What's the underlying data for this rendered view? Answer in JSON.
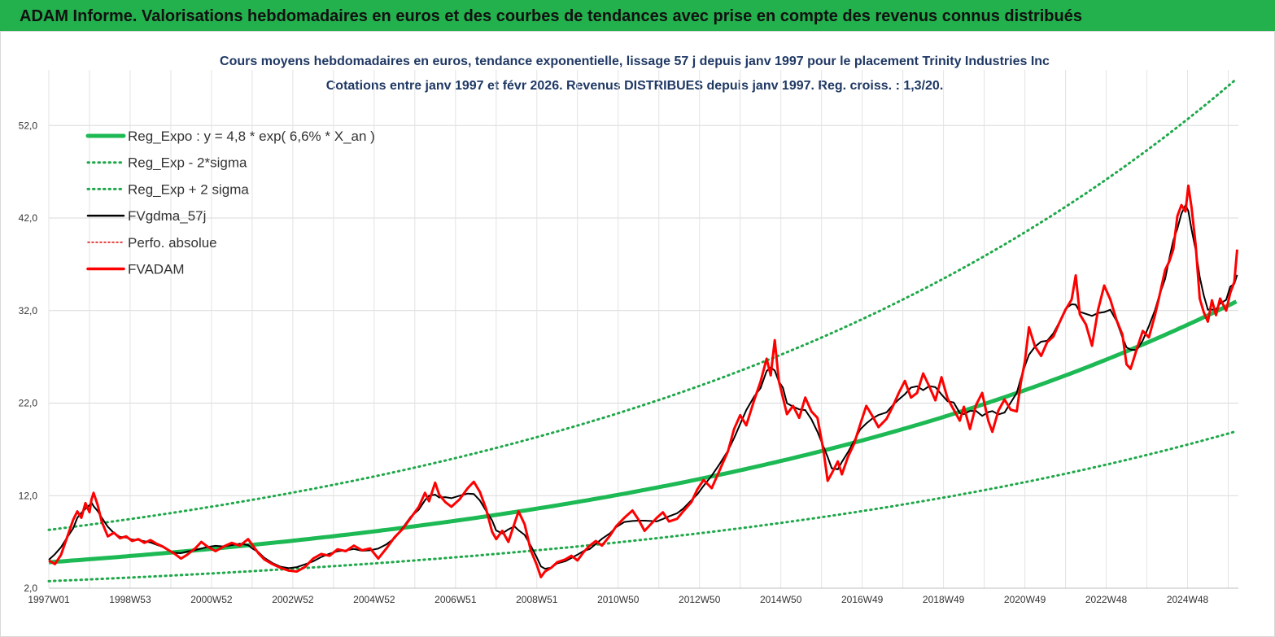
{
  "header": {
    "title": "ADAM Informe. Valorisations hebdomadaires en euros et des courbes de tendances avec prise en compte des revenus connus distribués"
  },
  "colors": {
    "header_bg": "#22b14c",
    "trend": "#1db954",
    "band": "#1fa84a",
    "gdma": "#000000",
    "fvadam": "#ff0000",
    "perfo": "#e00000"
  },
  "chart_data": {
    "type": "line",
    "title": "Cours moyens hebdomadaires en euros, tendance exponentielle, lissage 57 j depuis janv 1997 pour le placement Trinity Industries Inc",
    "subtitle": "Cotations entre janv 1997 et févr 2026. Revenus DISTRIBUES depuis janv 1997. Reg. croiss. : 1,3/20.",
    "xlabel": "",
    "ylabel": "",
    "ylim": [
      2,
      58
    ],
    "y_ticks": [
      "2,0",
      "12,0",
      "22,0",
      "32,0",
      "42,0",
      "52,0"
    ],
    "y_tick_values": [
      2,
      12,
      22,
      32,
      42,
      52
    ],
    "x_ticks": [
      "1997W01",
      "1998W53",
      "2000W52",
      "2002W52",
      "2004W52",
      "2006W51",
      "2008W51",
      "2010W50",
      "2012W50",
      "2014W50",
      "2016W49",
      "2018W49",
      "2020W49",
      "2022W48",
      "2024W48"
    ],
    "x_tick_years": [
      1997.0,
      1999.0,
      2001.0,
      2003.0,
      2005.0,
      2007.0,
      2009.0,
      2011.0,
      2013.0,
      2015.0,
      2017.0,
      2019.0,
      2021.0,
      2023.0,
      2025.0
    ],
    "xlim_years": [
      1997.0,
      2026.25
    ],
    "grid": true,
    "legend_position": "top-left",
    "series": [
      {
        "name": "Reg_Expo : y = 4,8 * exp( 6,6% *  X_an )",
        "style": "thick-solid",
        "color": "#1db954",
        "formula": {
          "a": 4.8,
          "rate": 0.066
        }
      },
      {
        "name": "Reg_Exp - 2*sigma",
        "style": "dotted",
        "color": "#1fa84a",
        "formula": {
          "a": 2.76,
          "rate": 0.066
        }
      },
      {
        "name": "Reg_Exp + 2 sigma",
        "style": "dotted",
        "color": "#1fa84a",
        "formula": {
          "a": 8.3,
          "rate": 0.066
        }
      },
      {
        "name": "FVgdma_57j",
        "style": "thin-solid",
        "color": "#000000"
      },
      {
        "name": "Perfo. absolue",
        "style": "dotted-thin",
        "color": "#e00000",
        "values": []
      },
      {
        "name": "FVADAM",
        "style": "solid",
        "color": "#ff0000",
        "points": [
          [
            1997.0,
            5.0
          ],
          [
            1997.15,
            4.6
          ],
          [
            1997.3,
            5.6
          ],
          [
            1997.45,
            7.5
          ],
          [
            1997.6,
            9.4
          ],
          [
            1997.7,
            10.3
          ],
          [
            1997.8,
            9.6
          ],
          [
            1997.9,
            11.2
          ],
          [
            1998.0,
            10.2
          ],
          [
            1998.05,
            11.6
          ],
          [
            1998.1,
            12.3
          ],
          [
            1998.2,
            11.0
          ],
          [
            1998.3,
            9.2
          ],
          [
            1998.45,
            7.6
          ],
          [
            1998.6,
            8.0
          ],
          [
            1998.75,
            7.4
          ],
          [
            1998.9,
            7.6
          ],
          [
            1999.05,
            7.1
          ],
          [
            1999.2,
            7.3
          ],
          [
            1999.35,
            6.9
          ],
          [
            1999.5,
            7.2
          ],
          [
            1999.65,
            6.8
          ],
          [
            1999.8,
            6.5
          ],
          [
            1999.95,
            6.1
          ],
          [
            2000.1,
            5.7
          ],
          [
            2000.25,
            5.2
          ],
          [
            2000.4,
            5.6
          ],
          [
            2000.6,
            6.3
          ],
          [
            2000.75,
            7.0
          ],
          [
            2000.9,
            6.5
          ],
          [
            2001.1,
            6.0
          ],
          [
            2001.3,
            6.5
          ],
          [
            2001.5,
            6.9
          ],
          [
            2001.7,
            6.6
          ],
          [
            2001.9,
            7.3
          ],
          [
            2002.0,
            6.7
          ],
          [
            2002.15,
            5.8
          ],
          [
            2002.3,
            5.1
          ],
          [
            2002.5,
            4.6
          ],
          [
            2002.7,
            4.2
          ],
          [
            2002.9,
            3.9
          ],
          [
            2003.1,
            3.8
          ],
          [
            2003.3,
            4.3
          ],
          [
            2003.5,
            5.2
          ],
          [
            2003.7,
            5.7
          ],
          [
            2003.9,
            5.5
          ],
          [
            2004.1,
            6.2
          ],
          [
            2004.3,
            6.0
          ],
          [
            2004.5,
            6.6
          ],
          [
            2004.7,
            6.1
          ],
          [
            2004.9,
            6.3
          ],
          [
            2005.1,
            5.2
          ],
          [
            2005.3,
            6.3
          ],
          [
            2005.5,
            7.5
          ],
          [
            2005.7,
            8.4
          ],
          [
            2005.9,
            9.6
          ],
          [
            2006.1,
            10.8
          ],
          [
            2006.25,
            12.3
          ],
          [
            2006.35,
            11.4
          ],
          [
            2006.5,
            13.4
          ],
          [
            2006.6,
            12.1
          ],
          [
            2006.75,
            11.3
          ],
          [
            2006.9,
            10.8
          ],
          [
            2007.1,
            11.6
          ],
          [
            2007.3,
            12.8
          ],
          [
            2007.45,
            13.5
          ],
          [
            2007.6,
            12.4
          ],
          [
            2007.75,
            10.6
          ],
          [
            2007.9,
            8.1
          ],
          [
            2008.0,
            7.3
          ],
          [
            2008.15,
            8.2
          ],
          [
            2008.3,
            7.0
          ],
          [
            2008.45,
            9.0
          ],
          [
            2008.55,
            10.3
          ],
          [
            2008.7,
            8.9
          ],
          [
            2008.85,
            6.1
          ],
          [
            2009.0,
            4.5
          ],
          [
            2009.1,
            3.2
          ],
          [
            2009.2,
            3.8
          ],
          [
            2009.35,
            4.2
          ],
          [
            2009.5,
            4.8
          ],
          [
            2009.7,
            5.1
          ],
          [
            2009.85,
            5.5
          ],
          [
            2010.0,
            5.0
          ],
          [
            2010.15,
            5.9
          ],
          [
            2010.3,
            6.6
          ],
          [
            2010.45,
            7.1
          ],
          [
            2010.6,
            6.6
          ],
          [
            2010.8,
            7.7
          ],
          [
            2010.95,
            8.7
          ],
          [
            2011.15,
            9.6
          ],
          [
            2011.35,
            10.4
          ],
          [
            2011.5,
            9.4
          ],
          [
            2011.65,
            8.2
          ],
          [
            2011.8,
            8.9
          ],
          [
            2011.95,
            9.6
          ],
          [
            2012.1,
            10.2
          ],
          [
            2012.25,
            9.2
          ],
          [
            2012.45,
            9.5
          ],
          [
            2012.6,
            10.3
          ],
          [
            2012.8,
            11.3
          ],
          [
            2012.95,
            12.7
          ],
          [
            2013.1,
            13.7
          ],
          [
            2013.3,
            12.8
          ],
          [
            2013.5,
            14.8
          ],
          [
            2013.7,
            16.8
          ],
          [
            2013.85,
            19.2
          ],
          [
            2014.0,
            20.7
          ],
          [
            2014.15,
            19.6
          ],
          [
            2014.35,
            22.4
          ],
          [
            2014.5,
            24.3
          ],
          [
            2014.65,
            26.8
          ],
          [
            2014.75,
            25.0
          ],
          [
            2014.85,
            28.8
          ],
          [
            2014.95,
            24.4
          ],
          [
            2015.05,
            22.6
          ],
          [
            2015.15,
            20.8
          ],
          [
            2015.3,
            21.7
          ],
          [
            2015.45,
            20.4
          ],
          [
            2015.6,
            22.6
          ],
          [
            2015.75,
            21.1
          ],
          [
            2015.9,
            20.4
          ],
          [
            2016.05,
            16.8
          ],
          [
            2016.15,
            13.6
          ],
          [
            2016.25,
            14.4
          ],
          [
            2016.4,
            15.7
          ],
          [
            2016.5,
            14.3
          ],
          [
            2016.65,
            16.2
          ],
          [
            2016.8,
            17.6
          ],
          [
            2016.95,
            19.7
          ],
          [
            2017.1,
            21.7
          ],
          [
            2017.25,
            20.6
          ],
          [
            2017.4,
            19.4
          ],
          [
            2017.6,
            20.3
          ],
          [
            2017.75,
            21.6
          ],
          [
            2017.9,
            23.1
          ],
          [
            2018.05,
            24.4
          ],
          [
            2018.2,
            22.6
          ],
          [
            2018.35,
            23.1
          ],
          [
            2018.5,
            25.2
          ],
          [
            2018.65,
            23.8
          ],
          [
            2018.8,
            22.3
          ],
          [
            2018.95,
            24.8
          ],
          [
            2019.1,
            22.5
          ],
          [
            2019.25,
            21.3
          ],
          [
            2019.4,
            20.1
          ],
          [
            2019.5,
            21.6
          ],
          [
            2019.65,
            19.2
          ],
          [
            2019.8,
            21.8
          ],
          [
            2019.95,
            23.1
          ],
          [
            2020.1,
            20.1
          ],
          [
            2020.2,
            18.9
          ],
          [
            2020.35,
            21.2
          ],
          [
            2020.5,
            22.4
          ],
          [
            2020.65,
            21.3
          ],
          [
            2020.8,
            21.1
          ],
          [
            2020.9,
            24.2
          ],
          [
            2021.0,
            26.5
          ],
          [
            2021.1,
            30.2
          ],
          [
            2021.25,
            28.1
          ],
          [
            2021.4,
            27.1
          ],
          [
            2021.55,
            28.6
          ],
          [
            2021.7,
            29.2
          ],
          [
            2021.85,
            30.7
          ],
          [
            2022.0,
            32.1
          ],
          [
            2022.15,
            33.2
          ],
          [
            2022.25,
            35.8
          ],
          [
            2022.35,
            31.6
          ],
          [
            2022.5,
            30.5
          ],
          [
            2022.65,
            28.2
          ],
          [
            2022.8,
            32.1
          ],
          [
            2022.95,
            34.7
          ],
          [
            2023.1,
            33.2
          ],
          [
            2023.25,
            31.0
          ],
          [
            2023.4,
            29.4
          ],
          [
            2023.5,
            26.2
          ],
          [
            2023.6,
            25.7
          ],
          [
            2023.75,
            27.8
          ],
          [
            2023.9,
            29.8
          ],
          [
            2024.05,
            29.1
          ],
          [
            2024.2,
            31.5
          ],
          [
            2024.3,
            33.4
          ],
          [
            2024.45,
            36.4
          ],
          [
            2024.55,
            37.3
          ],
          [
            2024.65,
            38.6
          ],
          [
            2024.75,
            42.2
          ],
          [
            2024.85,
            43.4
          ],
          [
            2024.95,
            42.7
          ],
          [
            2025.02,
            45.5
          ],
          [
            2025.1,
            43.1
          ],
          [
            2025.2,
            39.1
          ],
          [
            2025.3,
            33.3
          ],
          [
            2025.4,
            31.8
          ],
          [
            2025.5,
            30.8
          ],
          [
            2025.6,
            33.1
          ],
          [
            2025.7,
            31.5
          ],
          [
            2025.8,
            33.3
          ],
          [
            2025.95,
            32.0
          ],
          [
            2026.05,
            33.9
          ],
          [
            2026.15,
            35.1
          ],
          [
            2026.22,
            38.6
          ]
        ]
      }
    ]
  }
}
